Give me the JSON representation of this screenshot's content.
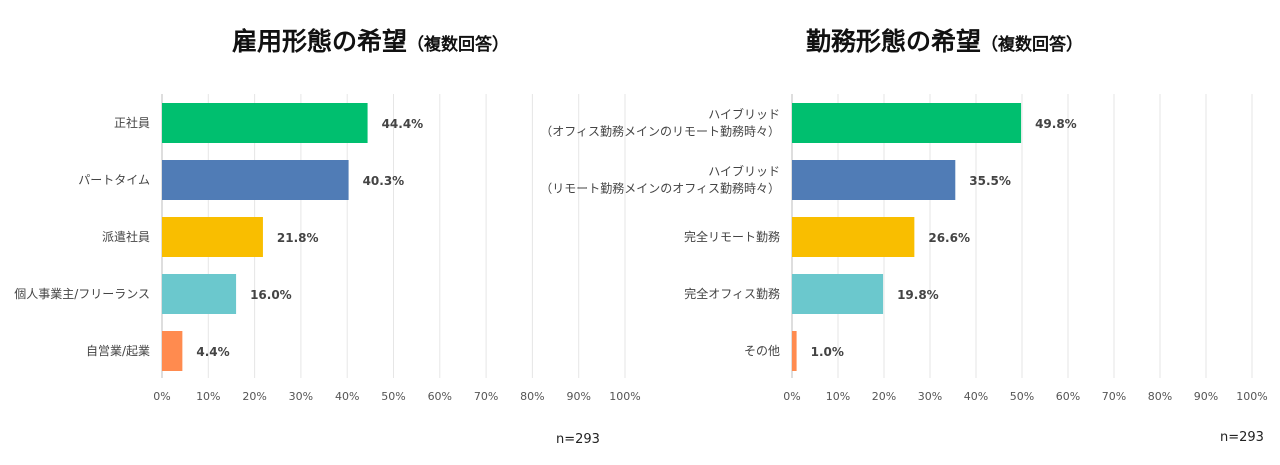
{
  "chart_data": [
    {
      "type": "bar",
      "orientation": "horizontal",
      "title": "雇用形態の希望",
      "subtitle": "（複数回答）",
      "categories": [
        "正社員",
        "パートタイム",
        "派遣社員",
        "個人事業主/フリーランス",
        "自営業/起業"
      ],
      "values": [
        44.4,
        40.3,
        21.8,
        16.0,
        4.4
      ],
      "value_labels": [
        "44.4%",
        "40.3%",
        "21.8%",
        "16.0%",
        "4.4%"
      ],
      "colors": [
        "#00bf6f",
        "#507cb6",
        "#f9be00",
        "#6bc8cd",
        "#ff8b4f"
      ],
      "xlim": [
        0,
        100
      ],
      "xticks": [
        "0%",
        "10%",
        "20%",
        "30%",
        "40%",
        "50%",
        "60%",
        "70%",
        "80%",
        "90%",
        "100%"
      ],
      "note": "n=293"
    },
    {
      "type": "bar",
      "orientation": "horizontal",
      "title": "勤務形態の希望",
      "subtitle": "（複数回答）",
      "categories": [
        "ハイブリッド\n（オフィス勤務メインのリモート勤務時々）",
        "ハイブリッド\n（リモート勤務メインのオフィス勤務時々）",
        "完全リモート勤務",
        "完全オフィス勤務",
        "その他"
      ],
      "values": [
        49.8,
        35.5,
        26.6,
        19.8,
        1.0
      ],
      "value_labels": [
        "49.8%",
        "35.5%",
        "26.6%",
        "19.8%",
        "1.0%"
      ],
      "colors": [
        "#00bf6f",
        "#507cb6",
        "#f9be00",
        "#6bc8cd",
        "#ff8b4f"
      ],
      "xlim": [
        0,
        100
      ],
      "xticks": [
        "0%",
        "10%",
        "20%",
        "30%",
        "40%",
        "50%",
        "60%",
        "70%",
        "80%",
        "90%",
        "100%"
      ],
      "note": "n=293"
    }
  ]
}
